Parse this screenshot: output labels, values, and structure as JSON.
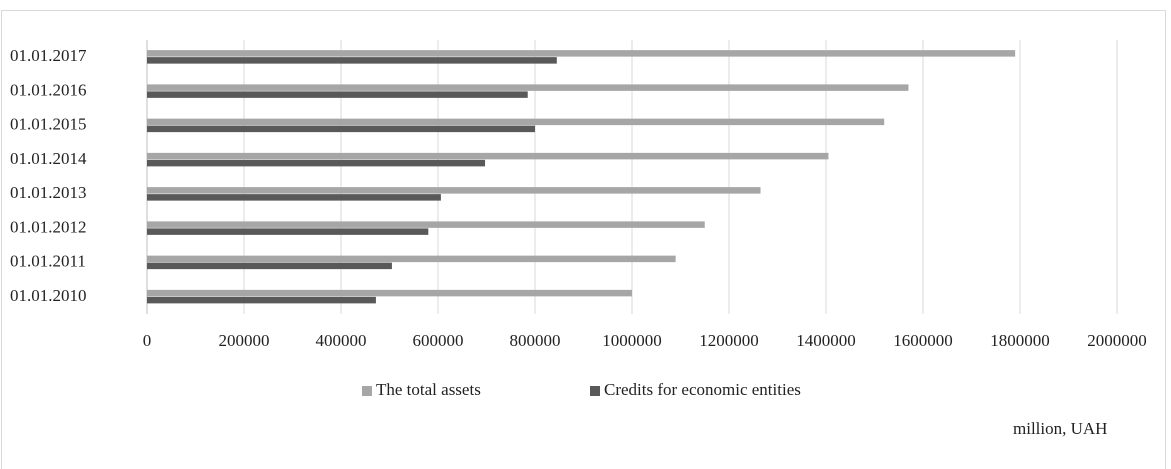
{
  "chart_data": {
    "type": "hbar",
    "categories": [
      "01.01.2010",
      "01.01.2011",
      "01.01.2012",
      "01.01.2013",
      "01.01.2014",
      "01.01.2015",
      "01.01.2016",
      "01.01.2017"
    ],
    "series": [
      {
        "name": "The total assets",
        "color": "#a6a6a6",
        "values": [
          1000000,
          1090000,
          1150000,
          1265000,
          1405000,
          1520000,
          1570000,
          1790000
        ]
      },
      {
        "name": "Credits for economic entities",
        "color": "#595959",
        "values": [
          472000,
          505000,
          580000,
          606000,
          697000,
          800000,
          785000,
          845000
        ]
      }
    ],
    "xlim": [
      0,
      2000000
    ],
    "xticks": [
      0,
      200000,
      400000,
      600000,
      800000,
      1000000,
      1200000,
      1400000,
      1600000,
      1800000,
      2000000
    ],
    "grid": true,
    "legend": "bottom",
    "unit_label": "million, UAH"
  }
}
